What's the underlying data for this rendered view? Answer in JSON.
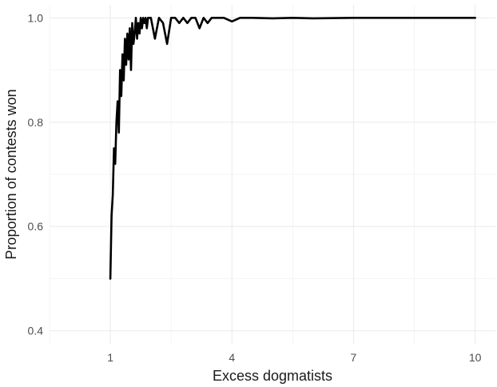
{
  "chart_data": {
    "type": "line",
    "xlabel": "Excess dogmatists",
    "ylabel": "Proportion of contests won",
    "xlim": [
      -0.5,
      10.5
    ],
    "ylim": [
      0.375,
      1.025
    ],
    "x_ticks": [
      1,
      4,
      7,
      10
    ],
    "x_tick_labels": [
      "1",
      "4",
      "7",
      "10"
    ],
    "y_ticks": [
      0.4,
      0.6,
      0.8,
      1.0
    ],
    "y_tick_labels": [
      "0.4",
      "0.6",
      "0.8",
      "1.0"
    ],
    "grid": true,
    "legend": "none",
    "series": [
      {
        "color": "#000000",
        "x": [
          1.0,
          1.03,
          1.06,
          1.09,
          1.12,
          1.15,
          1.18,
          1.21,
          1.24,
          1.27,
          1.3,
          1.33,
          1.36,
          1.39,
          1.42,
          1.45,
          1.48,
          1.51,
          1.54,
          1.57,
          1.6,
          1.63,
          1.66,
          1.69,
          1.72,
          1.75,
          1.78,
          1.81,
          1.84,
          1.87,
          1.9,
          1.93,
          1.96,
          2.0,
          2.1,
          2.2,
          2.3,
          2.4,
          2.5,
          2.6,
          2.7,
          2.8,
          2.9,
          3.0,
          3.1,
          3.2,
          3.3,
          3.4,
          3.5,
          3.6,
          3.8,
          4.0,
          4.2,
          4.5,
          5.0,
          5.5,
          6.0,
          7.0,
          8.0,
          9.0,
          10.0
        ],
        "y": [
          0.5,
          0.62,
          0.66,
          0.75,
          0.72,
          0.8,
          0.84,
          0.78,
          0.9,
          0.85,
          0.93,
          0.88,
          0.96,
          0.91,
          0.97,
          0.92,
          0.98,
          0.9,
          0.99,
          0.95,
          0.97,
          1.0,
          0.96,
          0.99,
          0.97,
          1.0,
          0.98,
          1.0,
          0.99,
          1.0,
          0.98,
          1.0,
          1.0,
          1.0,
          0.96,
          1.0,
          0.99,
          0.95,
          1.0,
          1.0,
          0.99,
          1.0,
          0.99,
          1.0,
          1.0,
          0.98,
          1.0,
          0.99,
          1.0,
          1.0,
          1.0,
          0.993,
          1.0,
          1.0,
          0.999,
          1.0,
          0.999,
          1.0,
          1.0,
          1.0,
          1.0
        ]
      }
    ]
  }
}
